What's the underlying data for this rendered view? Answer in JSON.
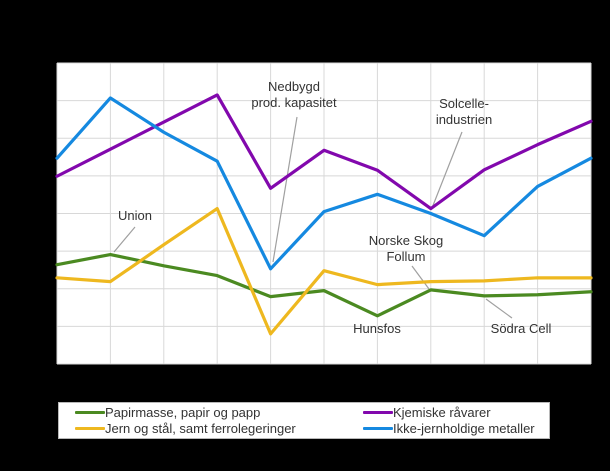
{
  "chart_data": {
    "type": "line",
    "title": "",
    "xlabel": "",
    "ylabel": "",
    "x": [
      0,
      1,
      2,
      3,
      4,
      5,
      6,
      7,
      8,
      9,
      10
    ],
    "x_tick_labels": [],
    "ylim": [
      0,
      8
    ],
    "grid": true,
    "legend_position": "bottom",
    "series": [
      {
        "name": "Papirmasse, papir og papp",
        "color": "#4b8a21",
        "values": [
          2.64,
          2.91,
          2.61,
          2.35,
          1.79,
          1.95,
          1.28,
          1.97,
          1.81,
          1.84,
          1.92
        ]
      },
      {
        "name": "Jern og stål, samt ferrolegeringer",
        "color": "#eeb81f",
        "values": [
          2.29,
          2.19,
          3.17,
          4.13,
          0.8,
          2.48,
          2.11,
          2.19,
          2.21,
          2.29,
          2.29
        ]
      },
      {
        "name": "Kjemiske råvarer",
        "color": "#8208ad",
        "values": [
          4.99,
          5.71,
          6.43,
          7.15,
          4.67,
          5.68,
          5.15,
          4.13,
          5.16,
          5.83,
          6.45
        ]
      },
      {
        "name": "Ikke-jernholdige metaller",
        "color": "#1589e0",
        "values": [
          5.47,
          7.07,
          6.16,
          5.39,
          2.53,
          4.05,
          4.51,
          4.0,
          3.41,
          4.72,
          5.47
        ]
      }
    ],
    "legend": {
      "items": [
        {
          "label": "Papirmasse, papir og papp",
          "color": "#4b8a21"
        },
        {
          "label": "Kjemiske råvarer",
          "color": "#8208ad"
        },
        {
          "label": "Jern og stål, samt ferrolegeringer",
          "color": "#eeb81f"
        },
        {
          "label": "Ikke-jernholdige metaller",
          "color": "#1589e0"
        }
      ]
    },
    "annotations": {
      "union": {
        "lines": [
          "Union"
        ],
        "target_series": "Papirmasse, papir og papp",
        "target_index": 1
      },
      "nedbygd": {
        "lines": [
          "Nedbygd",
          "prod. kapasitet"
        ],
        "target_series": "Ikke-jernholdige metaller",
        "target_index": 4
      },
      "solcelle": {
        "lines": [
          "Solcelle-",
          "industrien"
        ],
        "target_series": "Kjemiske råvarer",
        "target_index": 7
      },
      "norske_skog": {
        "lines": [
          "Norske Skog",
          "Follum"
        ],
        "target_series": "Papirmasse, papir og papp",
        "target_index": 7
      },
      "hunsfos": {
        "lines": [
          "Hunsfos"
        ],
        "target_series": "Papirmasse, papir og papp",
        "target_index": 6
      },
      "sodra_cell": {
        "lines": [
          "Södra Cell"
        ],
        "target_series": "Papirmasse, papir og papp",
        "target_index": 8
      }
    },
    "colors": {
      "plot_background": "#ffffff",
      "outer_background": "#000000",
      "gridline": "#d8d8d8",
      "annotation_text": "#333333",
      "leader_line": "#a0a0a0"
    }
  }
}
